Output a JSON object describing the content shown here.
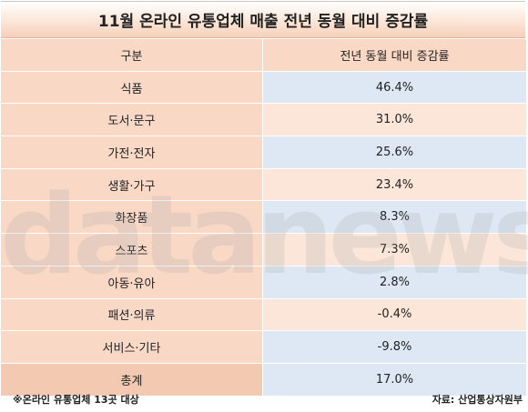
{
  "title": "11월 온라인 유통업체 매출 전년 동월 대비 증감률",
  "table": {
    "headers": [
      "구분",
      "전년 동월 대비 증감률"
    ],
    "rows": [
      [
        "식품",
        "46.4%"
      ],
      [
        "도서·문구",
        "31.0%"
      ],
      [
        "가전·전자",
        "25.6%"
      ],
      [
        "생활·가구",
        "23.4%"
      ],
      [
        "화장품",
        "8.3%"
      ],
      [
        "스포츠",
        "7.3%"
      ],
      [
        "아동·유아",
        "2.8%"
      ],
      [
        "패션·의류",
        "-0.4%"
      ],
      [
        "서비스·기타",
        "-9.8%"
      ],
      [
        "총계",
        "17.0%"
      ]
    ]
  },
  "watermark": "datanews",
  "footer": {
    "note": "※온라인 유통업체 13곳 대상",
    "source": "자료: 산업통상자원부"
  }
}
